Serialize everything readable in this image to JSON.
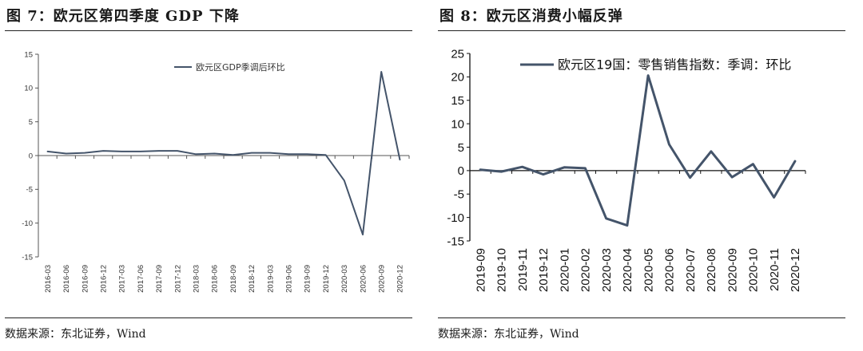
{
  "figures": [
    {
      "title": "图 7：欧元区第四季度 GDP 下降",
      "source": "数据来源：东北证券，Wind"
    },
    {
      "title": "图 8：欧元区消费小幅反弹",
      "source": "数据来源：东北证券，Wind"
    }
  ],
  "colors": {
    "series": "#44546a",
    "axis": "#555555",
    "axis_dark": "#111111"
  },
  "chart_data": [
    {
      "type": "line",
      "title": "欧元区第四季度 GDP 下降",
      "categories": [
        "2016-03",
        "2016-06",
        "2016-09",
        "2016-12",
        "2017-03",
        "2017-06",
        "2017-09",
        "2017-12",
        "2018-03",
        "2018-06",
        "2018-09",
        "2018-12",
        "2019-03",
        "2019-06",
        "2019-09",
        "2019-12",
        "2020-03",
        "2020-06",
        "2020-09",
        "2020-12"
      ],
      "series": [
        {
          "name": "欧元区GDP季调后环比",
          "values": [
            0.6,
            0.3,
            0.4,
            0.7,
            0.6,
            0.6,
            0.7,
            0.7,
            0.2,
            0.3,
            0.1,
            0.4,
            0.4,
            0.2,
            0.2,
            0.1,
            -3.7,
            -11.7,
            12.4,
            -0.6
          ]
        }
      ],
      "yticks": [
        15,
        10,
        5,
        0,
        -5,
        -10,
        -15
      ],
      "ytick_labels": [
        "15",
        "10",
        "5",
        "0",
        "-5",
        "-10",
        "-15"
      ],
      "ylim": [
        -15,
        15
      ],
      "legend_position": "top-center",
      "xlabel": "",
      "ylabel": ""
    },
    {
      "type": "line",
      "title": "欧元区消费小幅反弹",
      "categories": [
        "2019-09",
        "2019-10",
        "2019-11",
        "2019-12",
        "2020-01",
        "2020-02",
        "2020-03",
        "2020-04",
        "2020-05",
        "2020-06",
        "2020-07",
        "2020-08",
        "2020-09",
        "2020-10",
        "2020-11",
        "2020-12"
      ],
      "series": [
        {
          "name": "欧元区19国：零售销售指数：季调：环比",
          "values": [
            0.2,
            -0.2,
            0.8,
            -0.8,
            0.7,
            0.5,
            -10.2,
            -11.7,
            20.3,
            5.6,
            -1.5,
            4.1,
            -1.4,
            1.4,
            -5.7,
            2.0
          ]
        }
      ],
      "yticks": [
        25,
        20,
        15,
        10,
        5,
        0,
        -5,
        -10,
        -15
      ],
      "ytick_labels": [
        "25",
        "20",
        "15",
        "10",
        "5",
        "0",
        "-5",
        "-10",
        "-15"
      ],
      "ylim": [
        -15,
        25
      ],
      "legend_position": "top-right",
      "xlabel": "",
      "ylabel": ""
    }
  ]
}
